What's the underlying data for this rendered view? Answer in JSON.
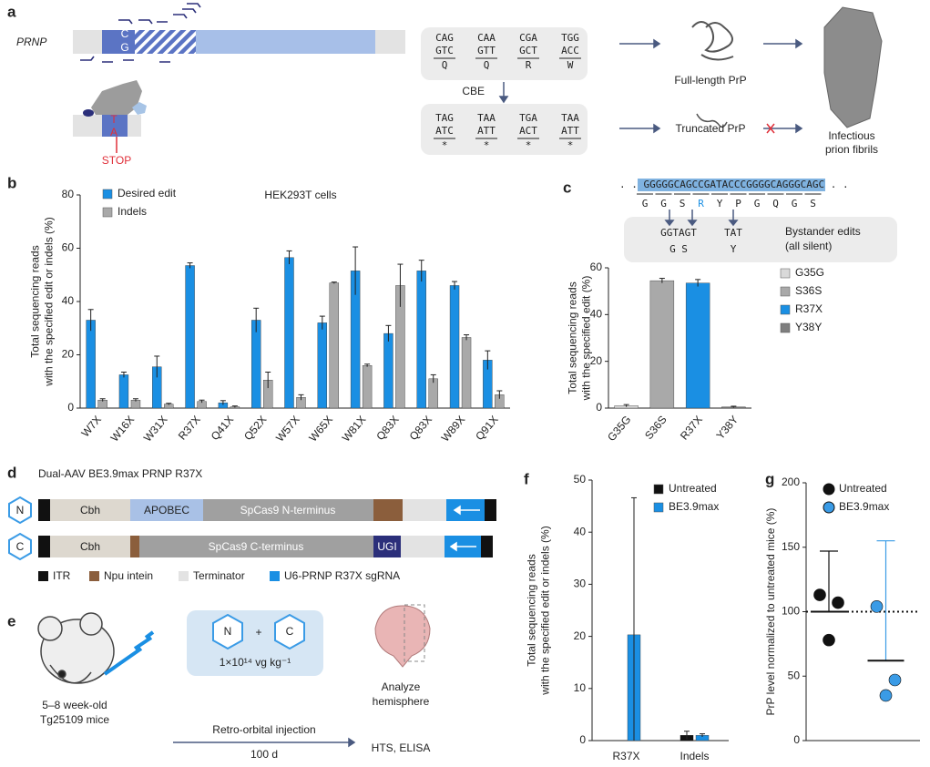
{
  "panel_labels": [
    "a",
    "b",
    "c",
    "d",
    "e",
    "f",
    "g"
  ],
  "panel_a": {
    "gene": "PRNP",
    "base_top": "C",
    "base_bottom": "G",
    "edit_top": "T",
    "edit_bottom": "A",
    "stop": "STOP",
    "codons": [
      {
        "top": "CAG",
        "bottom": "GTC",
        "aa": "Q"
      },
      {
        "top": "CAA",
        "bottom": "GTT",
        "aa": "Q"
      },
      {
        "top": "CGA",
        "bottom": "GCT",
        "aa": "R"
      },
      {
        "top": "TGG",
        "bottom": "ACC",
        "aa": "W"
      }
    ],
    "editor": "CBE",
    "edited": [
      {
        "top": "TAG",
        "bottom": "ATC",
        "aa": "*"
      },
      {
        "top": "TAA",
        "bottom": "ATT",
        "aa": "*"
      },
      {
        "top": "TGA",
        "bottom": "ACT",
        "aa": "*"
      },
      {
        "top": "TAA",
        "bottom": "ATT",
        "aa": "*"
      }
    ],
    "full_length": "Full-length PrP",
    "truncated": "Truncated PrP",
    "fibrils": [
      "Infectious",
      "prion fibrils"
    ]
  },
  "panel_c_sequence": {
    "sequence": ". . GGGGGCAGCCGATACCCGGGGCAGGGCAGC . .",
    "amino_acids": [
      "G",
      "G",
      "S",
      "R",
      "Y",
      "P",
      "G",
      "Q",
      "G",
      "S"
    ],
    "edits": [
      {
        "codon": "GGTAGT",
        "aa": "G  S"
      },
      {
        "codon": "TAT",
        "aa": "Y"
      }
    ],
    "note": [
      "Bystander edits",
      "(all silent)"
    ]
  },
  "panel_d": {
    "title": "Dual-AAV BE3.9max PRNP R37X",
    "n": "N",
    "c": "C",
    "row_n": [
      "Cbh",
      "APOBEC",
      "SpCas9 N-terminus"
    ],
    "row_c": [
      "Cbh",
      "SpCas9 C-terminus",
      "UGI"
    ],
    "legend": [
      "ITR",
      "Npu intein",
      "Terminator",
      "U6-PRNP R37X sgRNA"
    ]
  },
  "panel_e": {
    "mice": [
      "5–8 week-old",
      "Tg25109 mice"
    ],
    "n": "N",
    "plus": "+",
    "c": "C",
    "dose": "1×10¹⁴ vg kg⁻¹",
    "analyze": [
      "Analyze",
      "hemisphere"
    ],
    "route": "Retro-orbital injection",
    "time": "100 d",
    "readout": "HTS, ELISA"
  },
  "chart_data": [
    {
      "type": "bar",
      "annotation": "HEK293T cells",
      "categories": [
        "W7X",
        "W16X",
        "W31X",
        "R37X",
        "Q41X",
        "Q52X",
        "W57X",
        "W65X",
        "W81X",
        "Q83X",
        "Q83X",
        "W89X",
        "Q91X"
      ],
      "series": [
        {
          "name": "Desired edit",
          "color": "#1a8fe3",
          "values": [
            33,
            12.5,
            15.5,
            53.5,
            2,
            33,
            56.5,
            32,
            51.5,
            28,
            51.5,
            46,
            18
          ],
          "errors": [
            4,
            1,
            4,
            1,
            0.8,
            4.5,
            2.5,
            2.5,
            9,
            3,
            4,
            1.5,
            3.5
          ]
        },
        {
          "name": "Indels",
          "color": "#a9a9a9",
          "values": [
            3,
            3,
            1.5,
            2.5,
            0.5,
            10.5,
            4,
            47,
            16,
            46,
            11,
            26.5,
            5
          ],
          "errors": [
            0.5,
            0.5,
            0.3,
            0.5,
            0.3,
            3,
            1,
            0.3,
            0.5,
            8,
            1.5,
            1,
            1.5
          ]
        }
      ],
      "ylim": [
        0,
        80
      ],
      "yticks": [
        0,
        20,
        40,
        60,
        80
      ],
      "ylabel": [
        "Total sequencing reads",
        "with the specified edit or indels (%)"
      ]
    },
    {
      "type": "bar",
      "categories": [
        "G35G",
        "S36S",
        "R37X",
        "Y38Y"
      ],
      "series": [
        {
          "values": [
            1,
            54.5,
            53.5,
            0.5
          ],
          "errors": [
            0.5,
            1,
            1.5,
            0.3
          ],
          "colors": [
            "#d9d9d9",
            "#a9a9a9",
            "#1a8fe3",
            "#7f7f7f"
          ]
        }
      ],
      "ylim": [
        0,
        60
      ],
      "yticks": [
        0,
        20,
        40,
        60
      ],
      "ylabel": [
        "Total sequencing reads",
        "with the specified edit (%)"
      ]
    },
    {
      "type": "bar",
      "categories": [
        "R37X",
        "Indels"
      ],
      "series": [
        {
          "name": "Untreated",
          "color": "#111111",
          "values": [
            0,
            1
          ],
          "errors": [
            0,
            0.8
          ]
        },
        {
          "name": "BE3.9max",
          "color": "#1a8fe3",
          "values": [
            20.3,
            1
          ],
          "errors": [
            26.3,
            0.3
          ]
        }
      ],
      "ylim": [
        0,
        50
      ],
      "yticks": [
        0,
        10,
        20,
        30,
        40,
        50
      ],
      "ylabel": [
        "Total sequencing reads",
        "with the specified edit or indels (%)"
      ]
    },
    {
      "type": "strip",
      "series": [
        {
          "name": "Untreated",
          "color": "#111111",
          "values": [
            113,
            107,
            78
          ],
          "mean": 100,
          "error": 47
        },
        {
          "name": "BE3.9max",
          "color": "#3a9be6",
          "values": [
            104,
            47,
            35
          ],
          "mean": 62,
          "error": 93
        }
      ],
      "reference_line": 100,
      "ylim": [
        0,
        200
      ],
      "yticks": [
        0,
        50,
        100,
        150,
        200
      ],
      "ylabel": [
        "PrP level normalized to untreated mice (%)"
      ]
    }
  ]
}
